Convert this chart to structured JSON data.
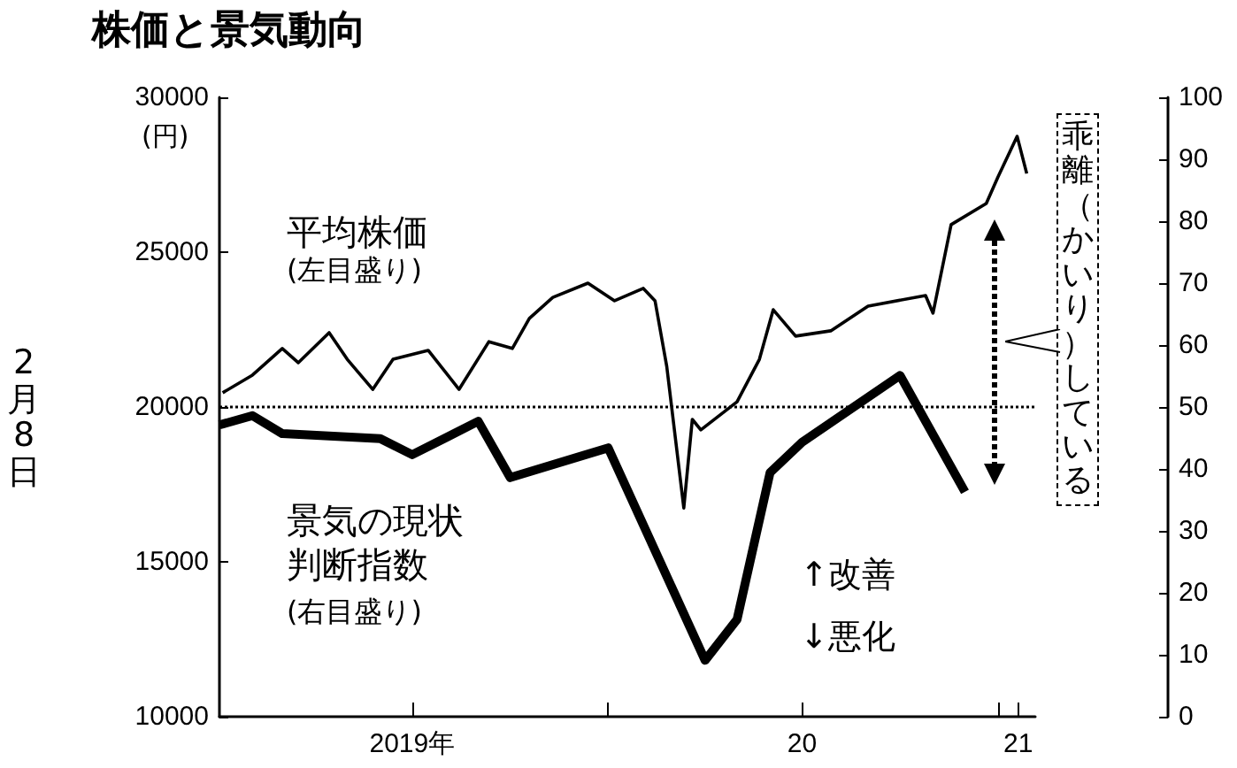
{
  "chart_data": {
    "type": "line",
    "title": "株価と景気動向",
    "ylabel": "(円)",
    "annotations": [
      "(左目盛り)",
      "(右目盛り)",
      "乖離（かいり）している",
      "↑改善",
      "↓悪化",
      "2月8日"
    ],
    "xlim": [
      "2019-01-01",
      "2021-02-05"
    ],
    "xticks": [
      {
        "value": "2019-07-01",
        "label": "2019年"
      },
      {
        "value": "2020-01-01",
        "label": null
      },
      {
        "value": "2020-07-01",
        "label": "20"
      },
      {
        "value": "2021-01-01",
        "label": null
      },
      {
        "value": "2021-01-20",
        "label": "21"
      }
    ],
    "ylim": [
      10000,
      30000
    ],
    "yticks": [
      10000,
      15000,
      20000,
      25000,
      30000
    ],
    "y2lim": [
      0,
      100
    ],
    "y2ticks": [
      0,
      10,
      20,
      30,
      40,
      50,
      60,
      70,
      80,
      90,
      100
    ],
    "grid": false,
    "legend": false,
    "marker": "none",
    "line_style": "solid",
    "ref_lines": [
      {
        "axis": "y",
        "value": 20000,
        "line_style": "dotted",
        "color": "#000000"
      }
    ],
    "series": [
      {
        "name": "平均株価",
        "color": "#000000",
        "x": [
          "2019-01-04",
          "2019-02-01",
          "2019-03-01",
          "2019-03-16",
          "2019-04-14",
          "2019-05-01",
          "2019-05-25",
          "2019-06-13",
          "2019-07-16",
          "2019-08-14",
          "2019-09-11",
          "2019-10-03",
          "2019-10-19",
          "2019-11-10",
          "2019-12-13",
          "2020-01-07",
          "2020-02-03",
          "2020-02-14",
          "2020-02-25",
          "2020-03-12",
          "2020-03-20",
          "2020-03-28",
          "2020-05-01",
          "2020-05-22",
          "2020-06-04",
          "2020-06-25",
          "2020-07-28",
          "2020-09-01",
          "2020-10-25",
          "2020-11-01",
          "2020-11-18",
          "2020-12-21",
          "2021-01-01",
          "2021-01-19",
          "2021-01-28"
        ],
        "values": [
          20460,
          21030,
          21890,
          21430,
          22400,
          21540,
          20570,
          21540,
          21830,
          20570,
          22110,
          21890,
          22860,
          23540,
          24000,
          23430,
          23830,
          23430,
          21310,
          16740,
          19600,
          19260,
          20170,
          21540,
          23140,
          22290,
          22460,
          23260,
          23600,
          23030,
          25890,
          26570,
          27430,
          28740,
          27540
        ]
      },
      {
        "name": "景気の現状判断指数",
        "color": "#000000",
        "axis": "y2",
        "x": [
          "2019-01",
          "2019-02",
          "2019-03",
          "2019-06",
          "2019-07",
          "2019-09",
          "2019-10",
          "2020-01",
          "2020-04",
          "2020-05",
          "2020-06",
          "2020-07",
          "2020-10",
          "2020-12"
        ],
        "values": [
          47.1,
          48.6,
          45.7,
          44.9,
          42.3,
          47.7,
          38.6,
          43.4,
          9.1,
          15.7,
          39.4,
          44.3,
          55.1,
          36.3
        ]
      }
    ]
  }
}
